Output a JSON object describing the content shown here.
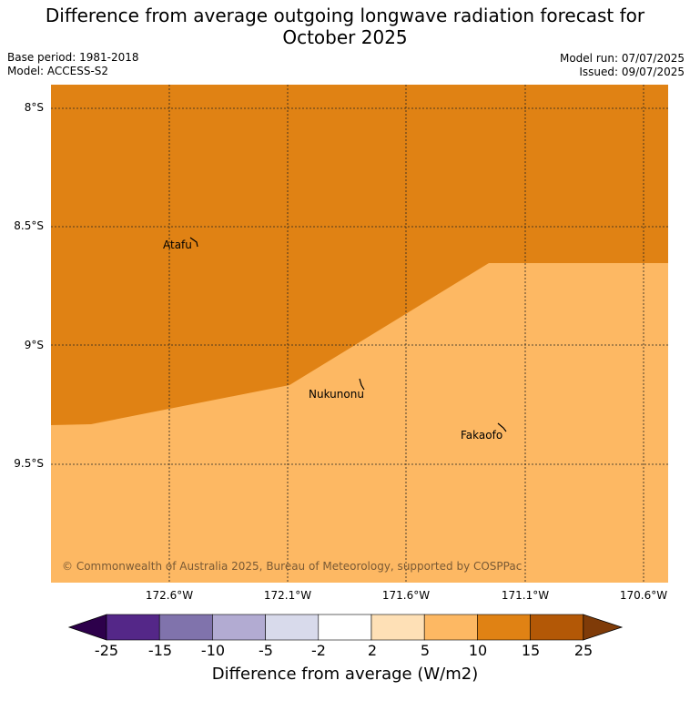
{
  "title": "Difference from average outgoing longwave radiation forecast for\nOctober 2025",
  "title_line1": "Difference from average outgoing longwave radiation forecast for",
  "title_line2": "October 2025",
  "meta_left": {
    "base_period": "Base period: 1981-2018",
    "model": "Model: ACCESS-S2"
  },
  "meta_right": {
    "model_run": "Model run: 07/07/2025",
    "issued": "Issued: 09/07/2025"
  },
  "map": {
    "lat_labels": [
      "8°S",
      "8.5°S",
      "9°S",
      "9.5°S"
    ],
    "lon_labels": [
      "172.6°W",
      "172.1°W",
      "171.6°W",
      "171.1°W",
      "170.6°W"
    ],
    "places": [
      "Atafu",
      "Nukunonu",
      "Fakaofo"
    ],
    "copyright": "© Commonwealth of Australia 2025, Bureau of Meteorology, supported by COSPPac",
    "region_colors": {
      "upper": "#e08214",
      "lower": "#fdb863"
    }
  },
  "colorbar": {
    "ticks": [
      "-25",
      "-15",
      "-10",
      "-5",
      "-2",
      "2",
      "5",
      "10",
      "15",
      "25"
    ],
    "colors": [
      "#2d004b",
      "#542788",
      "#8073ac",
      "#b2abd2",
      "#d8daeb",
      "#ffffff",
      "#fee0b6",
      "#fdb863",
      "#e08214",
      "#b35806",
      "#7f3b08"
    ],
    "label": "Difference from average (W/m2)"
  }
}
